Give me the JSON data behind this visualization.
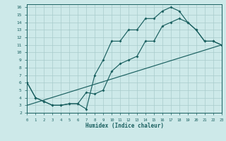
{
  "background_color": "#cde9e9",
  "grid_color": "#a8cccc",
  "line_color": "#1a6060",
  "xlim": [
    0,
    23
  ],
  "ylim": [
    2,
    16.4
  ],
  "xlabel": "Humidex (Indice chaleur)",
  "xticks": [
    0,
    1,
    2,
    3,
    4,
    5,
    6,
    7,
    8,
    9,
    10,
    11,
    12,
    13,
    14,
    15,
    16,
    17,
    18,
    19,
    20,
    21,
    22,
    23
  ],
  "yticks": [
    2,
    3,
    4,
    5,
    6,
    7,
    8,
    9,
    10,
    11,
    12,
    13,
    14,
    15,
    16
  ],
  "line_zigzag": {
    "x": [
      0,
      1,
      2,
      3,
      4,
      5,
      6,
      7,
      8,
      9,
      10,
      11,
      12,
      13,
      14,
      15,
      16,
      17,
      18,
      19,
      20,
      21,
      22,
      23
    ],
    "y": [
      6,
      4,
      3.5,
      3,
      3,
      3.2,
      3.2,
      2.5,
      7.0,
      9.0,
      11.5,
      11.5,
      13,
      13,
      14.5,
      14.5,
      15.5,
      16,
      15.5,
      14,
      13,
      11.5,
      11.5,
      11
    ]
  },
  "line_smooth": {
    "x": [
      0,
      1,
      2,
      3,
      4,
      5,
      6,
      7,
      8,
      9,
      10,
      11,
      12,
      13,
      14,
      15,
      16,
      17,
      18,
      19,
      20,
      21,
      22,
      23
    ],
    "y": [
      6,
      4,
      3.5,
      3,
      3,
      3.2,
      3.2,
      4.7,
      4.5,
      5.0,
      7.5,
      8.5,
      9.0,
      9.5,
      11.5,
      11.5,
      13.5,
      14,
      14.5,
      14,
      13,
      11.5,
      11.5,
      11
    ]
  },
  "line_diagonal": {
    "x": [
      0,
      23
    ],
    "y": [
      3.0,
      11.0
    ]
  }
}
